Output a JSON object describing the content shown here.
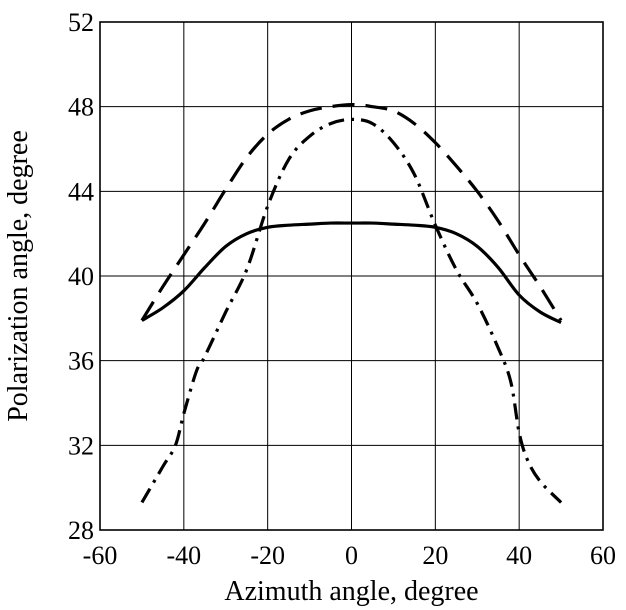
{
  "chart_data": {
    "type": "line",
    "xlabel": "Azimuth angle, degree",
    "ylabel": "Polarization angle, degree",
    "xlim": [
      -60,
      60
    ],
    "ylim": [
      28,
      52
    ],
    "xticks": [
      -60,
      -40,
      -20,
      0,
      20,
      40,
      60
    ],
    "yticks": [
      28,
      32,
      36,
      40,
      44,
      48,
      52
    ],
    "xtick_labels": [
      "-60",
      "-40",
      "-20",
      "0",
      "20",
      "40",
      "60"
    ],
    "ytick_labels": [
      "28",
      "32",
      "36",
      "40",
      "44",
      "48",
      "52"
    ],
    "grid": true,
    "legend": "none",
    "series": [
      {
        "line_style": "solid",
        "color": "#000000",
        "x": [
          -50,
          -45,
          -40,
          -35,
          -30,
          -25,
          -20,
          -15,
          -10,
          -5,
          0,
          5,
          10,
          15,
          20,
          25,
          30,
          35,
          40,
          45,
          50
        ],
        "y": [
          37.9,
          38.5,
          39.3,
          40.4,
          41.4,
          42.0,
          42.3,
          42.4,
          42.45,
          42.5,
          42.5,
          42.5,
          42.45,
          42.4,
          42.3,
          42.0,
          41.4,
          40.4,
          39.1,
          38.3,
          37.8
        ]
      },
      {
        "line_style": "dashed",
        "color": "#000000",
        "x": [
          -50,
          -45,
          -40,
          -35,
          -30,
          -25,
          -20,
          -15,
          -10,
          -5,
          0,
          5,
          10,
          15,
          20,
          25,
          30,
          35,
          40,
          45,
          50
        ],
        "y": [
          37.9,
          39.5,
          41.0,
          42.5,
          44.1,
          45.6,
          46.7,
          47.4,
          47.8,
          48.0,
          48.1,
          48.0,
          47.8,
          47.2,
          46.3,
          45.2,
          44.0,
          42.6,
          41.0,
          39.5,
          37.9
        ]
      },
      {
        "line_style": "dash-dot",
        "color": "#000000",
        "x": [
          -50,
          -45,
          -42,
          -40,
          -37,
          -35,
          -30,
          -25,
          -20,
          -15,
          -10,
          -5,
          0,
          5,
          10,
          15,
          20,
          25,
          30,
          35,
          38,
          40,
          42,
          45,
          50
        ],
        "y": [
          29.3,
          31.0,
          32.0,
          33.5,
          35.5,
          36.2,
          38.3,
          40.3,
          43.3,
          45.5,
          46.6,
          47.2,
          47.4,
          47.2,
          46.3,
          44.8,
          42.4,
          40.3,
          38.7,
          36.6,
          35.0,
          32.6,
          31.3,
          30.3,
          29.3
        ]
      }
    ]
  }
}
